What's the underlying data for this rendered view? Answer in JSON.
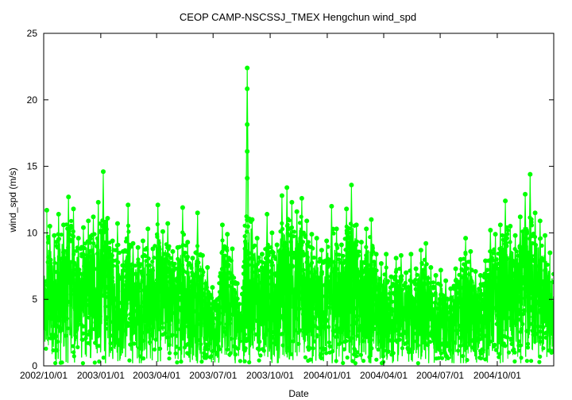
{
  "chart_data": {
    "type": "scatter",
    "title": "CEOP CAMP-NSCSSJ_TMEX Hengchun  wind_spd",
    "xlabel": "Date",
    "ylabel": "wind_spd (m/s)",
    "ylim": [
      0,
      25
    ],
    "xlim": [
      "2002-10-01",
      "2004-12-31"
    ],
    "x_tick_labels": [
      "2002/10/01",
      "2003/01/01",
      "2003/04/01",
      "2003/07/01",
      "2003/10/01",
      "2004/01/01",
      "2004/04/01",
      "2004/07/01",
      "2004/10/01"
    ],
    "y_tick_labels": [
      "0",
      "5",
      "10",
      "15",
      "20",
      "25"
    ],
    "grid": false,
    "legend": "none",
    "series": [
      {
        "color": "#00ff00",
        "marker": "circle",
        "connected": true,
        "x": [
          "2002-10-06",
          "2002-10-11",
          "2002-10-18",
          "2002-10-25",
          "2002-11-02",
          "2002-11-10",
          "2002-11-18",
          "2002-11-26",
          "2002-12-04",
          "2002-12-12",
          "2002-12-20",
          "2002-12-28",
          "2003-01-05",
          "2003-01-12",
          "2003-01-20",
          "2003-01-28",
          "2003-02-06",
          "2003-02-14",
          "2003-02-22",
          "2003-03-02",
          "2003-03-10",
          "2003-03-18",
          "2003-03-26",
          "2003-04-03",
          "2003-04-11",
          "2003-04-19",
          "2003-04-27",
          "2003-05-05",
          "2003-05-13",
          "2003-05-21",
          "2003-05-29",
          "2003-06-06",
          "2003-06-14",
          "2003-06-22",
          "2003-06-30",
          "2003-07-08",
          "2003-07-16",
          "2003-07-24",
          "2003-08-01",
          "2003-08-09",
          "2003-08-17",
          "2003-08-25",
          "2003-09-02",
          "2003-09-10",
          "2003-09-18",
          "2003-09-26",
          "2003-10-04",
          "2003-10-12",
          "2003-10-20",
          "2003-10-28",
          "2003-11-05",
          "2003-11-13",
          "2003-11-21",
          "2003-11-29",
          "2003-12-07",
          "2003-12-15",
          "2003-12-23",
          "2003-12-31",
          "2004-01-08",
          "2004-01-16",
          "2004-01-24",
          "2004-02-01",
          "2004-02-09",
          "2004-02-17",
          "2004-02-25",
          "2004-03-04",
          "2004-03-12",
          "2004-03-20",
          "2004-03-28",
          "2004-04-05",
          "2004-04-13",
          "2004-04-21",
          "2004-04-29",
          "2004-05-07",
          "2004-05-15",
          "2004-05-23",
          "2004-05-31",
          "2004-06-08",
          "2004-06-16",
          "2004-06-24",
          "2004-07-02",
          "2004-07-10",
          "2004-07-18",
          "2004-07-26",
          "2004-08-03",
          "2004-08-11",
          "2004-08-19",
          "2004-08-27",
          "2004-09-04",
          "2004-09-12",
          "2004-09-20",
          "2004-09-28",
          "2004-10-06",
          "2004-10-14",
          "2004-10-22",
          "2004-10-30",
          "2004-11-07",
          "2004-11-15",
          "2004-11-23",
          "2004-12-01",
          "2004-12-09",
          "2004-12-17",
          "2004-12-25"
        ],
        "y": [
          11.7,
          10.5,
          9.8,
          11.4,
          10.6,
          12.7,
          11.8,
          9.6,
          10.4,
          10.9,
          11.2,
          12.3,
          14.6,
          11.1,
          9.4,
          10.7,
          8.6,
          12.1,
          9.2,
          8.9,
          9.4,
          10.3,
          8.8,
          12.1,
          10.1,
          10.7,
          8.6,
          8.9,
          11.9,
          9.3,
          8.1,
          11.5,
          8.3,
          7.4,
          5.9,
          5.0,
          10.6,
          9.9,
          8.8,
          6.2,
          5.4,
          22.4,
          11.0,
          9.6,
          8.4,
          11.4,
          10.0,
          9.1,
          12.8,
          13.4,
          12.3,
          11.6,
          12.6,
          10.9,
          9.9,
          9.6,
          8.7,
          9.4,
          12.0,
          10.3,
          9.1,
          11.8,
          13.6,
          10.6,
          9.3,
          10.3,
          11.0,
          8.4,
          7.7,
          8.4,
          6.7,
          8.1,
          8.3,
          7.0,
          8.4,
          7.3,
          8.7,
          9.2,
          7.4,
          6.8,
          7.2,
          6.4,
          5.8,
          7.3,
          8.0,
          9.6,
          8.6,
          7.1,
          6.8,
          7.9,
          10.2,
          9.9,
          10.6,
          12.4,
          10.5,
          9.8,
          11.2,
          12.9,
          14.4,
          11.5,
          10.9,
          9.8,
          8.5
        ]
      }
    ]
  }
}
